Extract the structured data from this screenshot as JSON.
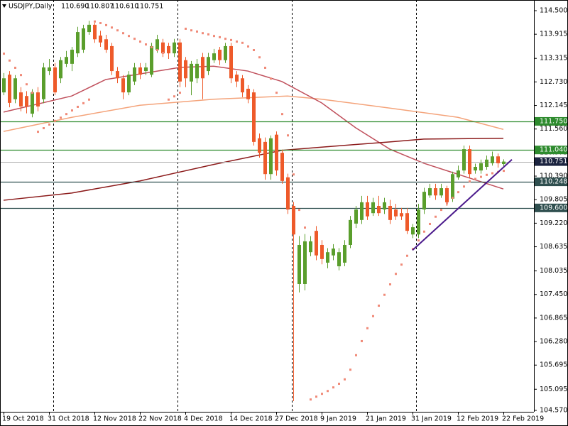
{
  "chart_data": {
    "type": "candlestick",
    "title": "USDJPY,Daily",
    "last_bar_labels": [
      "110.690",
      "110.807",
      "110.610",
      "110.751"
    ],
    "up_color": "#5a9e2c",
    "down_color": "#ee5a2a",
    "categories": [
      "19 Oct 2018",
      null,
      null,
      null,
      null,
      null,
      null,
      null,
      "31 Oct 2018",
      null,
      null,
      null,
      null,
      null,
      null,
      null,
      "12 Nov 2018",
      null,
      null,
      null,
      null,
      null,
      null,
      null,
      "22 Nov 2018",
      null,
      null,
      null,
      null,
      null,
      null,
      null,
      "4 Dec 2018",
      null,
      null,
      null,
      null,
      null,
      null,
      null,
      "14 Dec 2018",
      null,
      null,
      null,
      null,
      null,
      null,
      null,
      "27 Dec 2018",
      null,
      null,
      null,
      null,
      null,
      null,
      null,
      "9 Jan 2019",
      null,
      null,
      null,
      null,
      null,
      null,
      null,
      "21 Jan 2019",
      null,
      null,
      null,
      null,
      null,
      null,
      null,
      "31 Jan 2019",
      null,
      null,
      null,
      null,
      null,
      null,
      null,
      "12 Feb 2019",
      null,
      null,
      null,
      null,
      null,
      null,
      null,
      "22 Feb 2019"
    ],
    "open": [
      112.47,
      112.91,
      112.3,
      112.47,
      112.38,
      111.94,
      112.47,
      112.3,
      113.0,
      113.09,
      112.82,
      113.18,
      113.18,
      113.44,
      113.53,
      113.97,
      114.15,
      113.88,
      113.79,
      113.62,
      113.0,
      112.82,
      112.47,
      112.74,
      113.09,
      113.0,
      112.91,
      113.53,
      113.71,
      113.62,
      113.44,
      113.71,
      113.27,
      112.74,
      112.82,
      113.35,
      113.0,
      113.27,
      113.53,
      113.27,
      113.62,
      112.91,
      112.82,
      112.56,
      112.47,
      111.33,
      111.24,
      110.44,
      111.42,
      110.97,
      110.36,
      109.65,
      107.71,
      107.71,
      108.5,
      109.03,
      108.68,
      108.24,
      108.42,
      108.15,
      108.24,
      108.68,
      109.21,
      109.3,
      109.74,
      109.47,
      109.65,
      109.56,
      109.65,
      109.56,
      109.47,
      109.47,
      108.94,
      108.94,
      109.56,
      109.91,
      110.09,
      109.91,
      110.09,
      109.83,
      110.36,
      110.53,
      111.06,
      110.53,
      110.53,
      110.62,
      110.71,
      110.88,
      110.69
    ],
    "high": [
      112.95,
      113.0,
      112.9,
      112.6,
      112.5,
      112.55,
      112.6,
      113.2,
      113.3,
      113.2,
      113.35,
      113.5,
      113.6,
      114.1,
      114.15,
      114.25,
      114.2,
      114.0,
      113.9,
      113.7,
      113.1,
      112.9,
      113.0,
      113.2,
      113.2,
      113.2,
      113.7,
      113.9,
      113.8,
      113.7,
      113.8,
      113.8,
      113.35,
      113.25,
      113.3,
      113.45,
      113.45,
      113.55,
      113.6,
      113.7,
      113.7,
      113.0,
      112.9,
      112.65,
      112.55,
      111.45,
      111.35,
      111.4,
      111.5,
      111.05,
      110.45,
      109.75,
      108.9,
      108.95,
      108.9,
      109.15,
      108.8,
      108.6,
      108.7,
      108.6,
      108.8,
      109.4,
      109.65,
      109.9,
      109.9,
      109.85,
      109.9,
      109.85,
      109.8,
      109.7,
      109.6,
      109.6,
      109.2,
      109.7,
      110.1,
      110.2,
      110.2,
      110.2,
      110.15,
      110.5,
      110.65,
      111.15,
      111.15,
      110.7,
      110.8,
      110.9,
      111.0,
      110.95,
      110.807
    ],
    "low": [
      112.4,
      112.1,
      112.2,
      112.0,
      111.95,
      111.85,
      112.0,
      112.2,
      112.9,
      112.4,
      112.7,
      113.1,
      113.0,
      113.35,
      113.45,
      113.9,
      113.7,
      113.6,
      113.45,
      112.9,
      112.7,
      112.3,
      112.4,
      112.65,
      112.8,
      112.9,
      112.85,
      113.45,
      113.35,
      113.3,
      113.35,
      112.6,
      112.6,
      112.4,
      112.7,
      112.3,
      112.9,
      113.2,
      113.15,
      113.2,
      112.7,
      112.6,
      112.35,
      112.2,
      111.15,
      110.85,
      110.3,
      110.3,
      110.4,
      110.2,
      109.45,
      104.8,
      107.5,
      107.55,
      108.4,
      108.3,
      108.2,
      108.1,
      108.3,
      108.05,
      108.15,
      108.6,
      109.1,
      109.2,
      109.3,
      109.4,
      109.4,
      109.45,
      109.2,
      109.3,
      109.3,
      108.95,
      108.85,
      108.85,
      109.45,
      109.85,
      109.8,
      109.85,
      109.65,
      109.75,
      110.3,
      110.45,
      110.35,
      110.45,
      110.45,
      110.55,
      110.65,
      110.6,
      110.61
    ],
    "close": [
      112.82,
      112.21,
      112.82,
      112.12,
      112.12,
      112.47,
      112.12,
      113.09,
      113.09,
      112.47,
      113.27,
      113.35,
      113.53,
      113.97,
      114.06,
      114.15,
      113.79,
      113.71,
      113.53,
      113.0,
      112.82,
      112.47,
      112.91,
      113.09,
      112.91,
      113.09,
      113.62,
      113.79,
      113.44,
      113.44,
      113.71,
      112.74,
      112.82,
      113.18,
      113.18,
      112.82,
      113.35,
      113.44,
      113.27,
      113.62,
      112.82,
      112.74,
      112.47,
      112.3,
      111.24,
      110.97,
      110.44,
      111.33,
      110.53,
      110.27,
      109.56,
      108.94,
      108.68,
      108.77,
      108.77,
      108.42,
      108.33,
      108.5,
      108.59,
      108.5,
      108.68,
      109.3,
      109.56,
      109.74,
      109.39,
      109.74,
      109.47,
      109.74,
      109.3,
      109.39,
      109.39,
      109.03,
      109.12,
      109.56,
      110.0,
      110.09,
      109.91,
      110.09,
      109.74,
      110.44,
      110.53,
      111.06,
      110.44,
      110.62,
      110.71,
      110.8,
      110.88,
      110.71,
      110.751
    ],
    "sar": {
      "color": "#f08a78",
      "values": [
        113.44,
        113.27,
        113.09,
        112.91,
        112.68,
        112.47,
        111.5,
        111.59,
        111.68,
        111.77,
        111.85,
        111.94,
        112.03,
        112.12,
        112.21,
        112.3,
        114.24,
        114.2,
        114.15,
        114.09,
        114.02,
        113.95,
        113.88,
        113.81,
        113.74,
        113.67,
        113.6,
        113.53,
        113.46,
        112.3,
        112.38,
        112.47,
        114.06,
        114.02,
        113.99,
        113.95,
        113.92,
        113.88,
        113.85,
        113.81,
        113.78,
        113.74,
        113.71,
        113.62,
        113.53,
        113.35,
        113.09,
        112.82,
        112.47,
        111.94,
        111.41,
        110.44,
        109.56,
        109.12,
        104.85,
        104.92,
        104.99,
        105.06,
        105.15,
        105.24,
        105.35,
        105.59,
        105.95,
        106.3,
        106.62,
        106.92,
        107.18,
        107.45,
        107.71,
        107.97,
        108.2,
        108.42,
        108.59,
        108.8,
        109.02,
        109.21,
        109.39,
        109.56,
        109.72,
        109.86,
        110.0,
        110.14,
        110.27,
        110.33,
        110.38,
        110.43,
        110.47,
        110.5,
        110.53
      ]
    },
    "lines": [
      {
        "color": "#f4a37a",
        "x": [
          0,
          12,
          24,
          37,
          50,
          56,
          68,
          80,
          88
        ],
        "values": [
          111.5,
          111.85,
          112.15,
          112.3,
          112.38,
          112.3,
          112.08,
          111.85,
          111.55
        ]
      },
      {
        "color": "#c0505c",
        "x": [
          0,
          12,
          18,
          31,
          37,
          43,
          49,
          56,
          62,
          68,
          74,
          81,
          88
        ],
        "values": [
          111.98,
          112.38,
          112.79,
          113.09,
          113.12,
          113.0,
          112.74,
          112.21,
          111.59,
          111.06,
          110.71,
          110.39,
          110.07
        ]
      },
      {
        "color": "#8b1a1a",
        "x": [
          0,
          12,
          24,
          37,
          49,
          56,
          68,
          74,
          88
        ],
        "values": [
          109.79,
          109.97,
          110.27,
          110.68,
          111.03,
          111.11,
          111.24,
          111.31,
          111.33
        ]
      }
    ],
    "trendline": {
      "color": "#4b1a8c",
      "x": [
        72,
        89.5
      ],
      "values": [
        108.55,
        110.8
      ]
    },
    "levels": [
      {
        "value": 111.75,
        "label": "111.750",
        "color": "#2e8b2e"
      },
      {
        "value": 111.04,
        "label": "111.040",
        "color": "#2e8b2e"
      },
      {
        "value": 110.248,
        "label": "110.248",
        "color": "#2f4f4f"
      },
      {
        "value": 109.6,
        "label": "109.600",
        "color": "#2f4f4f"
      }
    ],
    "current_price": 110.751,
    "current_color": "#1c2440",
    "ylim": [
      104.535,
      114.765
    ],
    "yticks": [
      {
        "value": 114.5,
        "label": "114.500"
      },
      {
        "value": 113.915,
        "label": "113.915"
      },
      {
        "value": 113.315,
        "label": "113.315"
      },
      {
        "value": 112.73,
        "label": "112.730"
      },
      {
        "value": 112.145,
        "label": "112.145"
      },
      {
        "value": 111.56,
        "label": "111.560"
      },
      {
        "value": 110.975,
        "label": "110.975"
      },
      {
        "value": 110.39,
        "label": "110.390"
      },
      {
        "value": 109.805,
        "label": "109.805"
      },
      {
        "value": 109.22,
        "label": "109.220"
      },
      {
        "value": 108.635,
        "label": "108.635"
      },
      {
        "value": 108.035,
        "label": "108.035"
      },
      {
        "value": 107.45,
        "label": "107.450"
      },
      {
        "value": 106.865,
        "label": "106.865"
      },
      {
        "value": 106.28,
        "label": "106.280"
      },
      {
        "value": 105.695,
        "label": "105.695"
      },
      {
        "value": 105.095,
        "label": "105.095"
      },
      {
        "value": 104.57,
        "label": "104.570"
      }
    ]
  }
}
